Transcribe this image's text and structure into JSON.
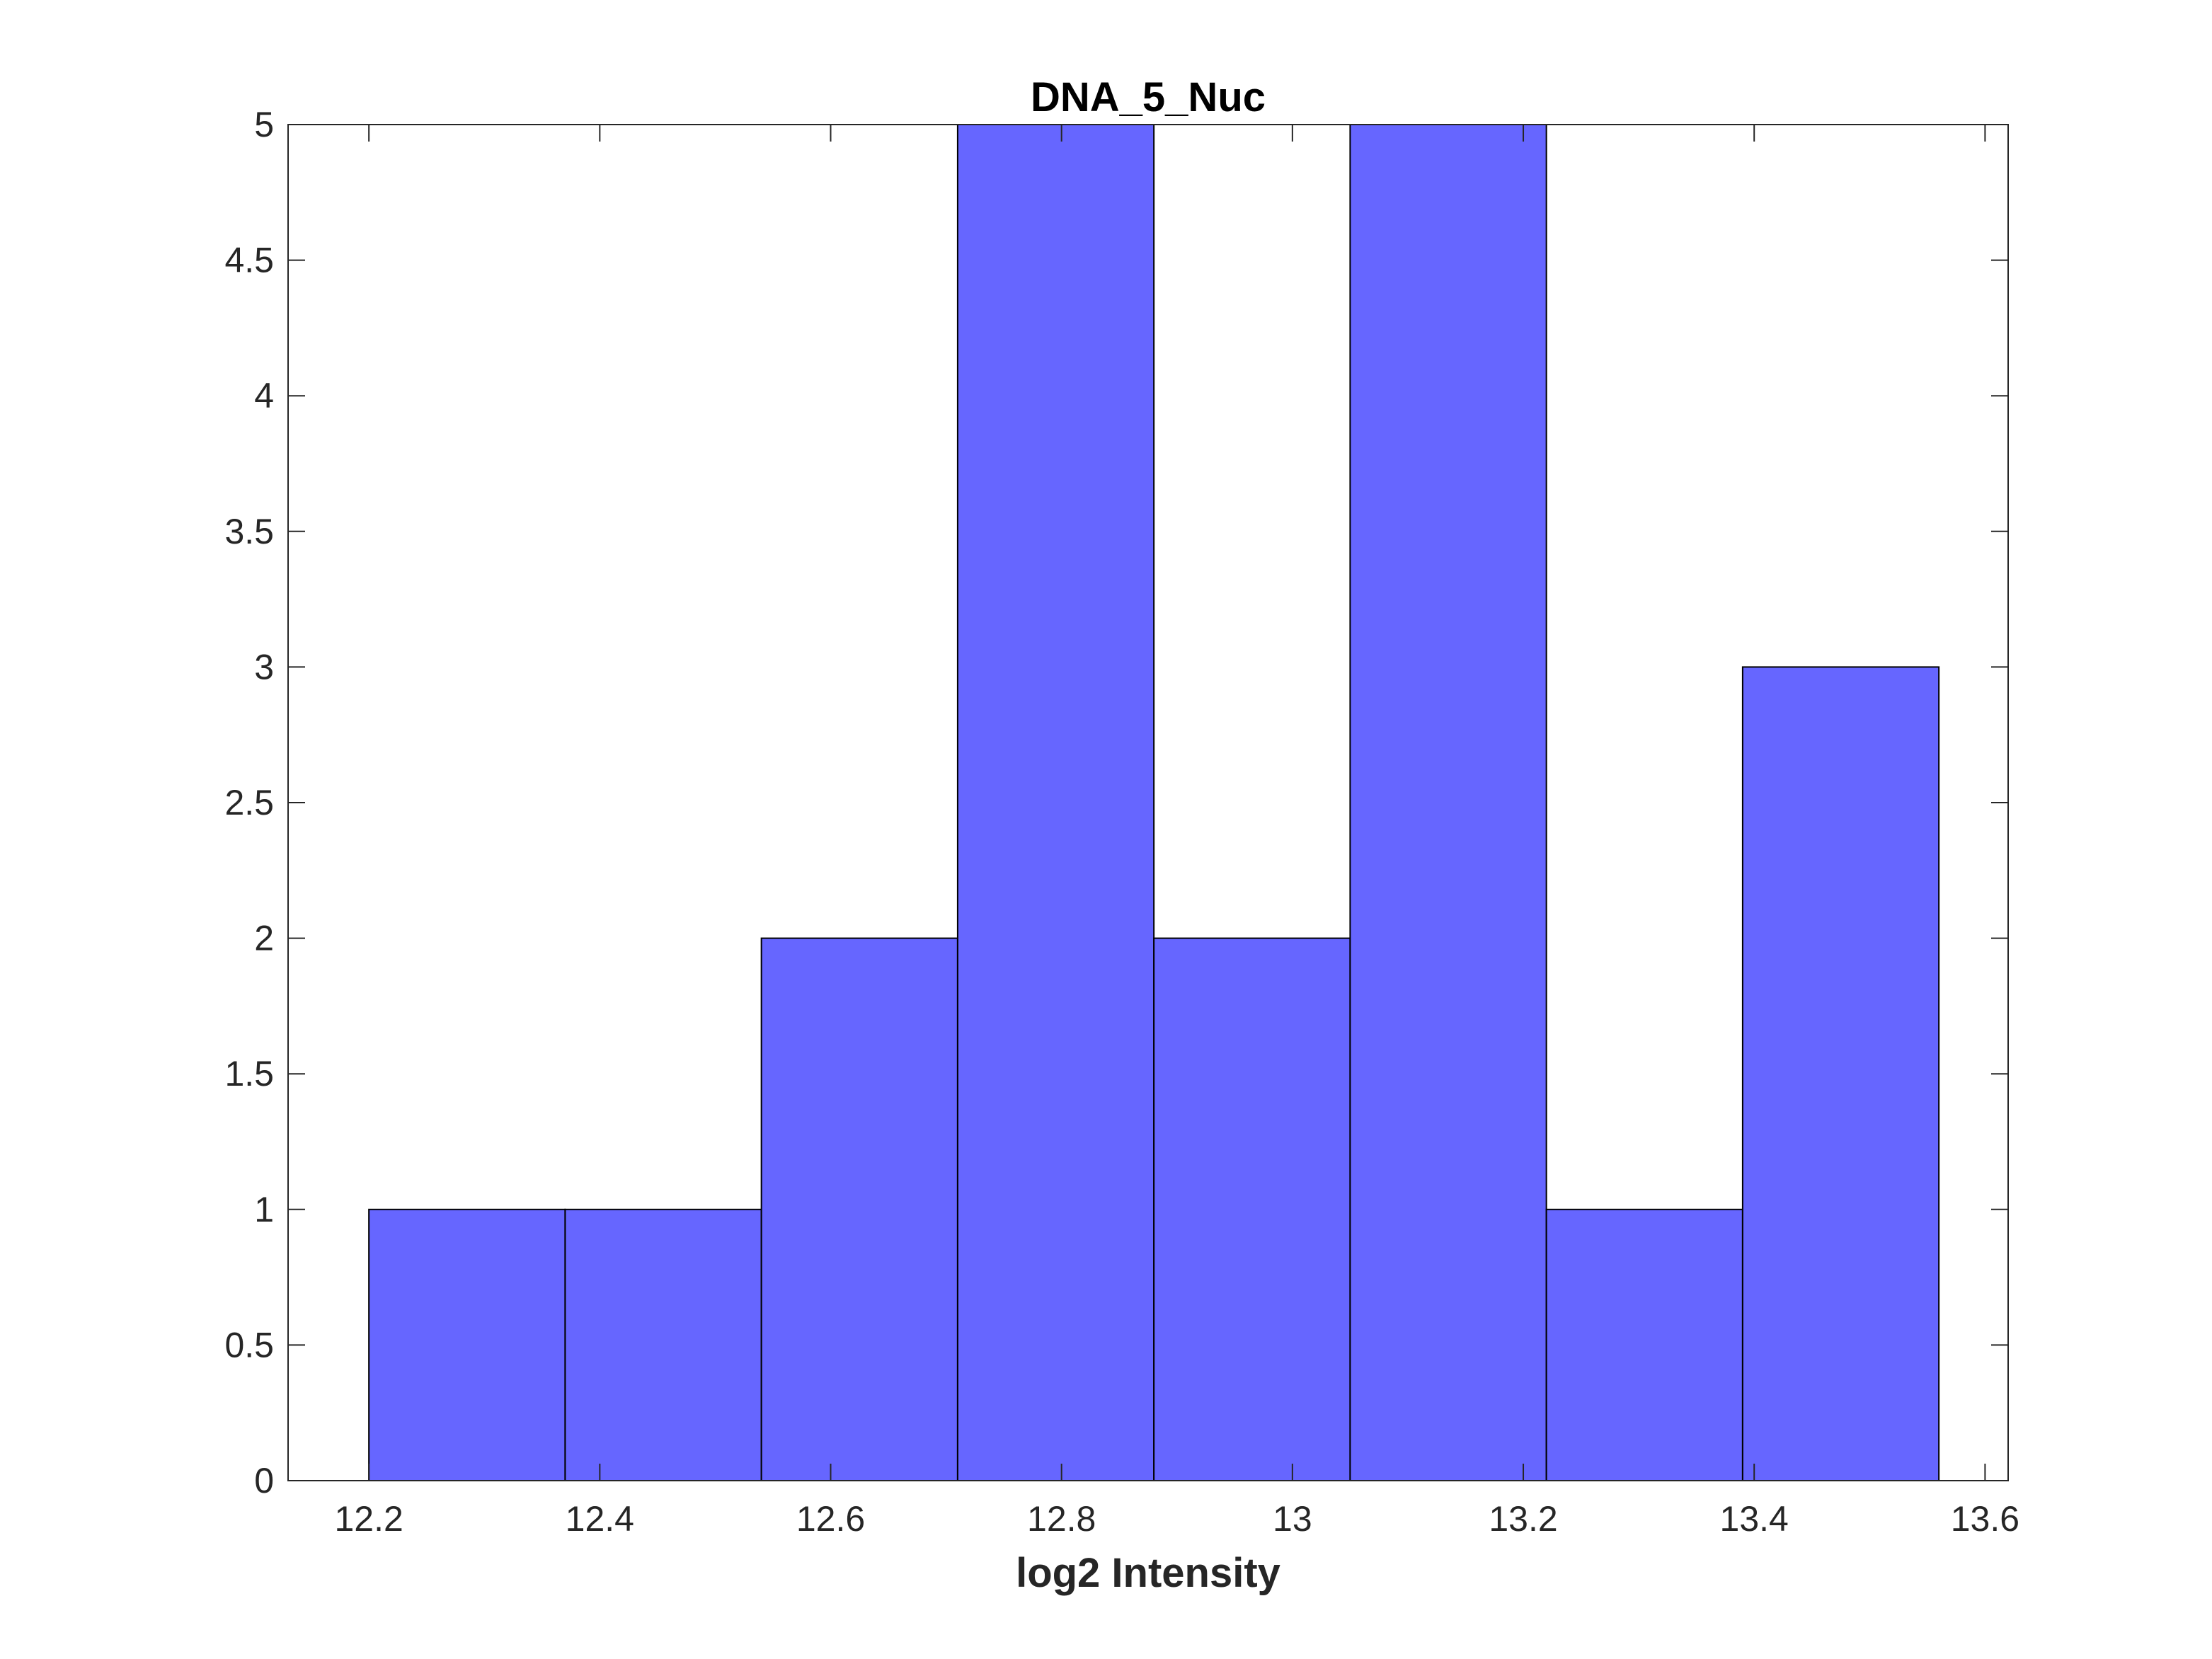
{
  "chart_data": {
    "type": "bar",
    "title": "DNA_5_Nuc",
    "xlabel": "log2 Intensity",
    "ylabel": "",
    "xlim": [
      12.13,
      13.62
    ],
    "ylim": [
      0,
      5
    ],
    "grid": false,
    "bin_edges": [
      12.2,
      12.37,
      12.54,
      12.71,
      12.88,
      13.05,
      13.22,
      13.39,
      13.56
    ],
    "values": [
      1,
      1,
      2,
      5,
      2,
      5,
      1,
      3
    ],
    "x_ticks": [
      12.2,
      12.4,
      12.6,
      12.8,
      13,
      13.2,
      13.4,
      13.6
    ],
    "x_tick_labels": [
      "12.2",
      "12.4",
      "12.6",
      "12.8",
      "13",
      "13.2",
      "13.4",
      "13.6"
    ],
    "y_ticks": [
      0,
      0.5,
      1,
      1.5,
      2,
      2.5,
      3,
      3.5,
      4,
      4.5,
      5
    ],
    "y_tick_labels": [
      "0",
      "0.5",
      "1",
      "1.5",
      "2",
      "2.5",
      "3",
      "3.5",
      "4",
      "4.5",
      "5"
    ],
    "colors": {
      "bar_fill": "#6666ff",
      "bar_edge": "#000000",
      "axes": "#262626"
    }
  }
}
